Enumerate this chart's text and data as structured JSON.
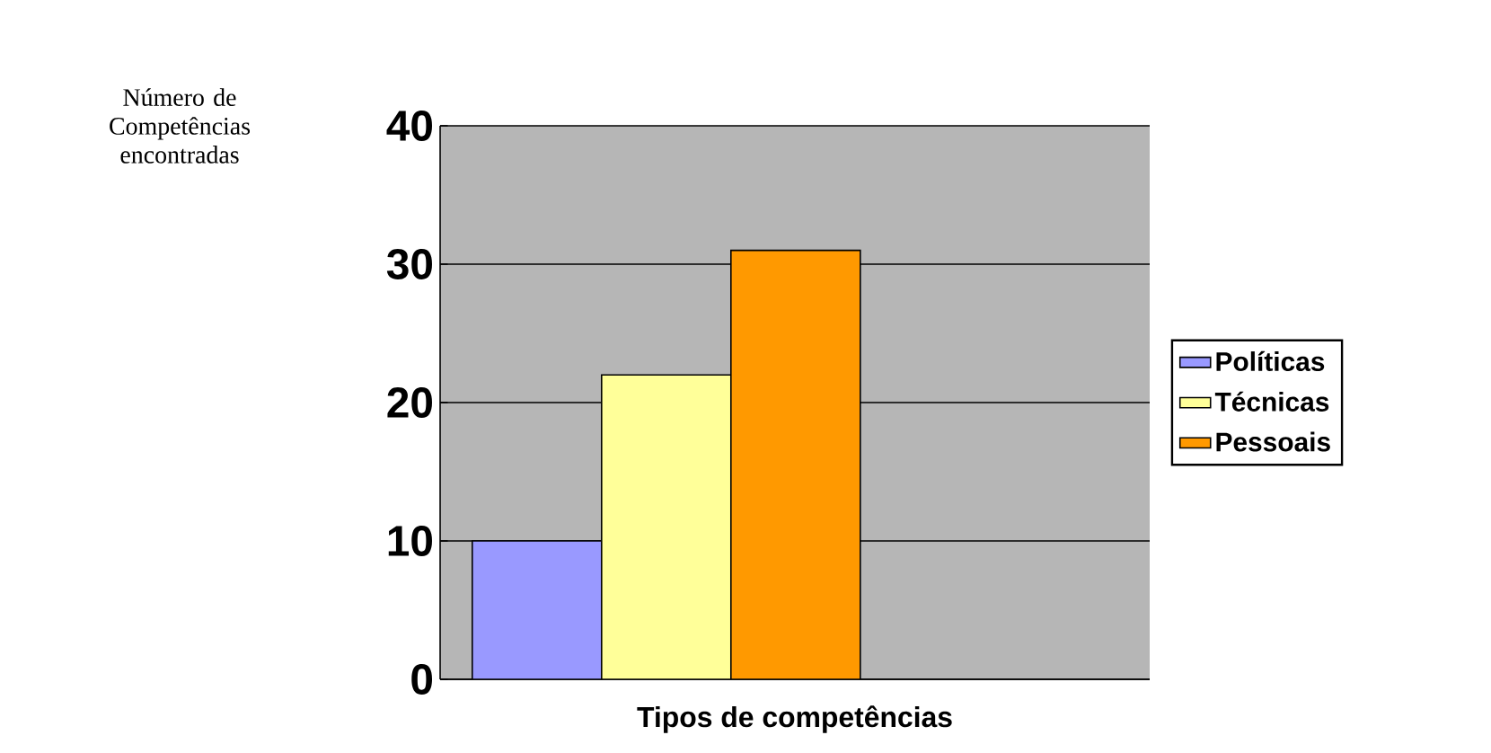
{
  "chart_data": {
    "type": "bar",
    "xlabel": "Tipos de competências",
    "annotations": [
      "Número de Competências encontradas"
    ],
    "categories": [
      null
    ],
    "series": [
      {
        "name": "Políticas",
        "color": "#9999ff",
        "values": [
          10
        ]
      },
      {
        "name": "Técnicas",
        "color": "#ffff99",
        "values": [
          22
        ]
      },
      {
        "name": "Pessoais",
        "color": "#ff9900",
        "values": [
          31
        ]
      },
      {
        "color": "#ccffff",
        "values": [
          null
        ]
      }
    ],
    "ylim": [
      0,
      40
    ],
    "yticks": [
      0,
      10,
      20,
      30,
      40
    ],
    "grid": "y",
    "legend": "right"
  }
}
